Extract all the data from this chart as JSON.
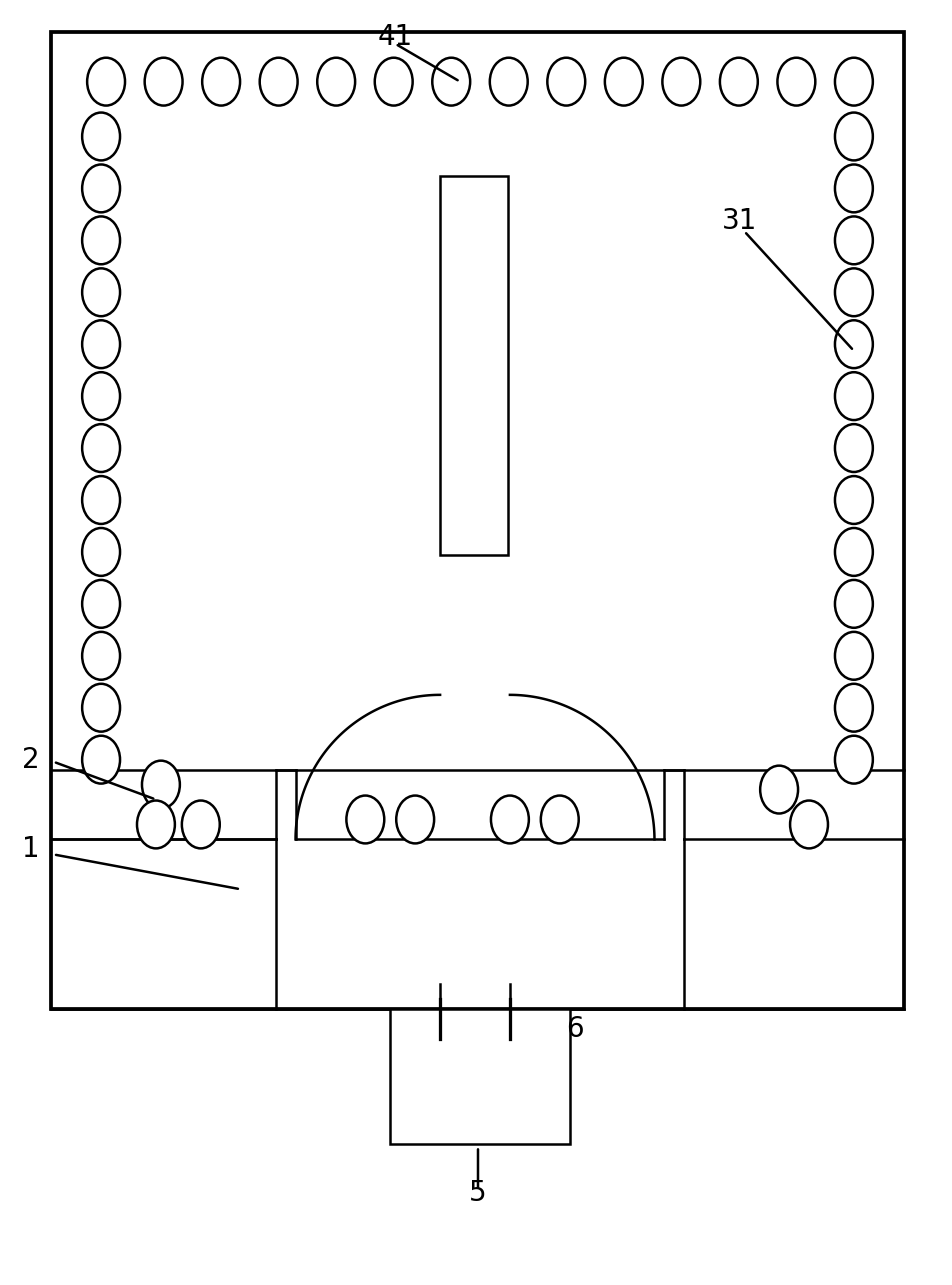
{
  "fig_width": 9.52,
  "fig_height": 12.85,
  "dpi": 100,
  "bg_color": "#ffffff",
  "lc": "#000000",
  "lw": 1.8
}
